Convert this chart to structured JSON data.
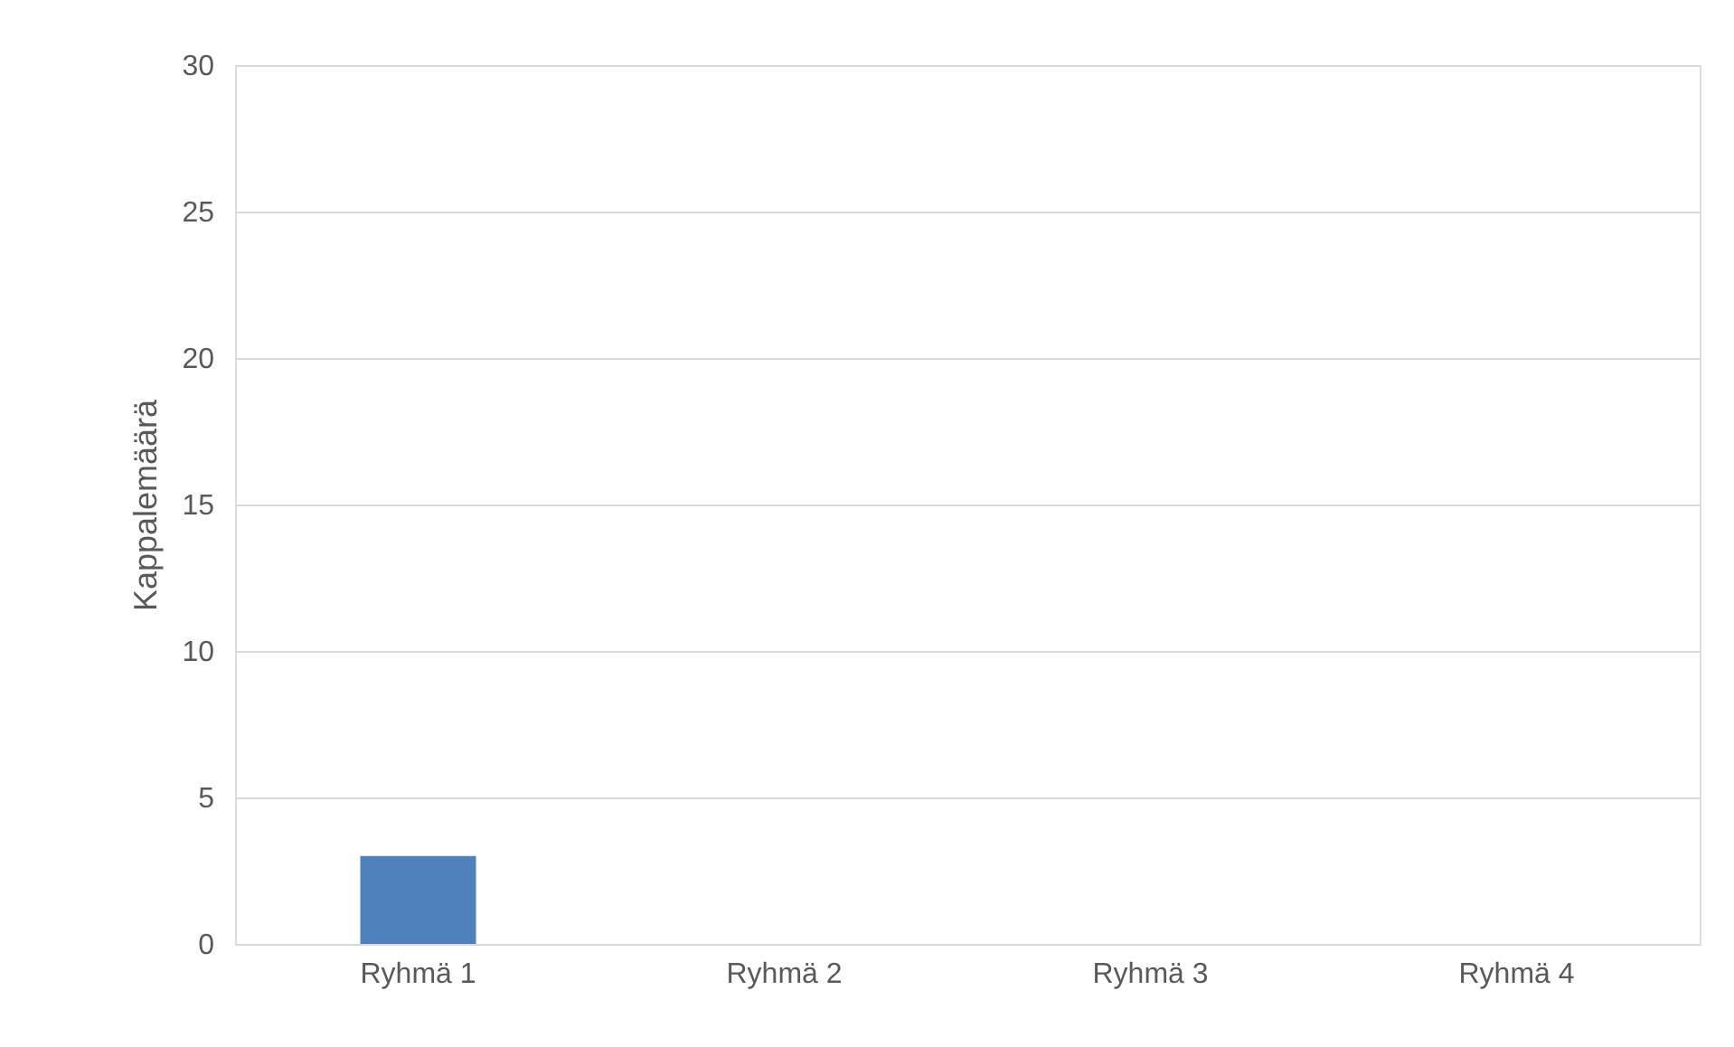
{
  "chart_data": {
    "type": "bar",
    "ylabel": "Kappalemäärä",
    "categories": [
      "Ryhmä 1",
      "Ryhmä 2",
      "Ryhmä 3",
      "Ryhmä 4"
    ],
    "values": [
      3,
      0,
      0,
      0
    ],
    "color": "#4f81bd",
    "ylim": [
      0,
      30
    ],
    "yticks": [
      0,
      5,
      10,
      15,
      20,
      25,
      30
    ],
    "grid": "y"
  }
}
